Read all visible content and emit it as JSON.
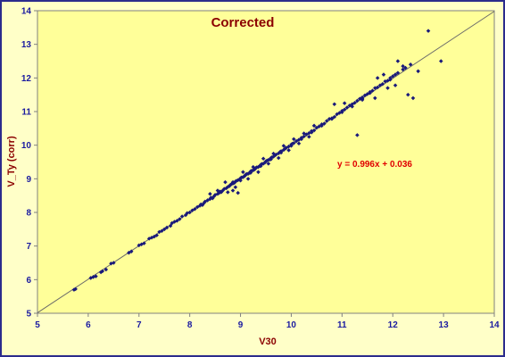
{
  "chart_data": {
    "type": "scatter",
    "title": "Corrected",
    "xlabel": "V30",
    "ylabel": "V_Ty (corr)",
    "xlim": [
      5,
      14
    ],
    "ylim": [
      5,
      14
    ],
    "xticks": [
      "5",
      "6",
      "7",
      "8",
      "9",
      "10",
      "11",
      "12",
      "13",
      "14"
    ],
    "yticks": [
      "5",
      "6",
      "7",
      "8",
      "9",
      "10",
      "11",
      "12",
      "13",
      "14"
    ],
    "grid": false,
    "legend": "none",
    "annotation": "y = 0.996x + 0.036",
    "trendline": {
      "slope": 0.996,
      "intercept": 0.036
    },
    "marker_color": "#1a1a7a",
    "line_color": "#6b6b6b",
    "series": [
      {
        "points": [
          [
            5.72,
            5.7
          ],
          [
            5.75,
            5.72
          ],
          [
            6.05,
            6.05
          ],
          [
            6.1,
            6.08
          ],
          [
            6.15,
            6.1
          ],
          [
            6.25,
            6.22
          ],
          [
            6.28,
            6.25
          ],
          [
            6.35,
            6.3
          ],
          [
            6.45,
            6.48
          ],
          [
            6.5,
            6.5
          ],
          [
            6.8,
            6.8
          ],
          [
            6.85,
            6.84
          ],
          [
            7.0,
            7.02
          ],
          [
            7.05,
            7.05
          ],
          [
            7.1,
            7.08
          ],
          [
            7.2,
            7.22
          ],
          [
            7.25,
            7.25
          ],
          [
            7.3,
            7.28
          ],
          [
            7.4,
            7.42
          ],
          [
            7.45,
            7.45
          ],
          [
            7.5,
            7.5
          ],
          [
            7.55,
            7.55
          ],
          [
            7.62,
            7.6
          ],
          [
            7.7,
            7.72
          ],
          [
            7.75,
            7.75
          ],
          [
            7.8,
            7.8
          ],
          [
            7.85,
            7.88
          ],
          [
            7.92,
            7.92
          ],
          [
            8.0,
            8.0
          ],
          [
            8.05,
            8.06
          ],
          [
            8.1,
            8.1
          ],
          [
            8.15,
            8.16
          ],
          [
            8.2,
            8.2
          ],
          [
            8.22,
            8.24
          ],
          [
            8.28,
            8.28
          ],
          [
            8.3,
            8.32
          ],
          [
            8.35,
            8.36
          ],
          [
            8.4,
            8.4
          ],
          [
            8.42,
            8.44
          ],
          [
            8.48,
            8.48
          ],
          [
            8.5,
            8.52
          ],
          [
            8.55,
            8.55
          ],
          [
            8.58,
            8.58
          ],
          [
            8.6,
            8.62
          ],
          [
            8.65,
            8.65
          ],
          [
            8.68,
            8.7
          ],
          [
            8.72,
            8.72
          ],
          [
            8.75,
            8.76
          ],
          [
            8.78,
            8.78
          ],
          [
            8.8,
            8.82
          ],
          [
            8.82,
            8.84
          ],
          [
            8.85,
            8.86
          ],
          [
            8.88,
            8.88
          ],
          [
            8.9,
            8.92
          ],
          [
            8.92,
            8.94
          ],
          [
            8.95,
            8.96
          ],
          [
            8.98,
            8.98
          ],
          [
            9.0,
            9.02
          ],
          [
            9.02,
            9.04
          ],
          [
            9.05,
            9.05
          ],
          [
            9.08,
            9.08
          ],
          [
            9.1,
            9.12
          ],
          [
            9.12,
            9.14
          ],
          [
            9.15,
            9.15
          ],
          [
            9.18,
            9.18
          ],
          [
            9.2,
            9.22
          ],
          [
            9.22,
            9.24
          ],
          [
            9.25,
            9.25
          ],
          [
            9.28,
            9.28
          ],
          [
            9.3,
            9.32
          ],
          [
            9.32,
            9.34
          ],
          [
            9.35,
            9.35
          ],
          [
            9.38,
            9.38
          ],
          [
            9.4,
            9.42
          ],
          [
            9.42,
            9.44
          ],
          [
            9.45,
            9.45
          ],
          [
            9.48,
            9.48
          ],
          [
            9.5,
            9.52
          ],
          [
            9.52,
            9.54
          ],
          [
            9.55,
            9.56
          ],
          [
            9.58,
            9.58
          ],
          [
            9.6,
            9.62
          ],
          [
            9.62,
            9.64
          ],
          [
            9.65,
            9.66
          ],
          [
            9.68,
            9.7
          ],
          [
            9.7,
            9.72
          ],
          [
            9.75,
            9.76
          ],
          [
            9.78,
            9.8
          ],
          [
            9.8,
            9.82
          ],
          [
            9.85,
            9.86
          ],
          [
            9.88,
            9.9
          ],
          [
            9.9,
            9.92
          ],
          [
            9.95,
            9.96
          ],
          [
            10.0,
            10.02
          ],
          [
            10.02,
            10.04
          ],
          [
            10.05,
            10.06
          ],
          [
            10.1,
            10.12
          ],
          [
            10.15,
            10.16
          ],
          [
            10.2,
            10.22
          ],
          [
            10.25,
            10.26
          ],
          [
            10.3,
            10.32
          ],
          [
            10.35,
            10.36
          ],
          [
            10.4,
            10.42
          ],
          [
            10.45,
            10.44
          ],
          [
            10.5,
            10.52
          ],
          [
            10.55,
            10.56
          ],
          [
            10.6,
            10.62
          ],
          [
            10.65,
            10.64
          ],
          [
            10.7,
            10.72
          ],
          [
            10.75,
            10.78
          ],
          [
            10.8,
            10.8
          ],
          [
            10.85,
            10.84
          ],
          [
            10.9,
            10.92
          ],
          [
            10.95,
            10.96
          ],
          [
            11.0,
            11.02
          ],
          [
            11.05,
            11.06
          ],
          [
            11.1,
            11.12
          ],
          [
            11.15,
            11.18
          ],
          [
            11.2,
            11.22
          ],
          [
            11.25,
            11.26
          ],
          [
            11.3,
            11.32
          ],
          [
            11.35,
            11.38
          ],
          [
            11.4,
            11.42
          ],
          [
            11.45,
            11.48
          ],
          [
            11.5,
            11.52
          ],
          [
            11.55,
            11.58
          ],
          [
            11.6,
            11.62
          ],
          [
            11.65,
            11.7
          ],
          [
            11.7,
            11.72
          ],
          [
            11.75,
            11.78
          ],
          [
            11.8,
            11.82
          ],
          [
            11.85,
            11.9
          ],
          [
            11.9,
            11.92
          ],
          [
            11.95,
            12.0
          ],
          [
            12.0,
            12.05
          ],
          [
            12.05,
            12.1
          ],
          [
            12.1,
            12.15
          ],
          [
            12.2,
            12.25
          ],
          [
            12.25,
            12.3
          ],
          [
            12.35,
            12.4
          ],
          [
            8.4,
            8.55
          ],
          [
            8.55,
            8.65
          ],
          [
            8.7,
            8.9
          ],
          [
            8.75,
            8.6
          ],
          [
            8.9,
            8.75
          ],
          [
            9.05,
            9.2
          ],
          [
            9.15,
            9.0
          ],
          [
            9.25,
            9.35
          ],
          [
            9.35,
            9.2
          ],
          [
            9.45,
            9.6
          ],
          [
            9.55,
            9.45
          ],
          [
            9.65,
            9.75
          ],
          [
            9.75,
            9.62
          ],
          [
            9.85,
            9.98
          ],
          [
            9.95,
            9.85
          ],
          [
            10.05,
            10.18
          ],
          [
            10.15,
            10.05
          ],
          [
            10.25,
            10.35
          ],
          [
            10.35,
            10.25
          ],
          [
            10.45,
            10.58
          ],
          [
            7.35,
            7.32
          ],
          [
            7.65,
            7.68
          ],
          [
            7.95,
            7.98
          ],
          [
            8.25,
            8.22
          ],
          [
            8.45,
            8.42
          ],
          [
            8.62,
            8.6
          ],
          [
            8.85,
            8.9
          ],
          [
            9.0,
            8.95
          ],
          [
            9.2,
            9.18
          ],
          [
            9.4,
            9.38
          ],
          [
            9.6,
            9.58
          ],
          [
            9.8,
            9.78
          ],
          [
            10.0,
            9.98
          ],
          [
            10.2,
            10.18
          ],
          [
            10.4,
            10.38
          ],
          [
            10.6,
            10.58
          ],
          [
            10.8,
            10.78
          ],
          [
            11.0,
            10.98
          ],
          [
            11.2,
            11.15
          ],
          [
            11.4,
            11.38
          ],
          [
            8.85,
            8.65
          ],
          [
            8.95,
            8.58
          ],
          [
            10.85,
            11.22
          ],
          [
            11.05,
            11.25
          ],
          [
            11.3,
            10.3
          ],
          [
            11.65,
            11.4
          ],
          [
            11.9,
            11.7
          ],
          [
            11.95,
            11.95
          ],
          [
            12.05,
            11.78
          ],
          [
            12.1,
            12.5
          ],
          [
            12.2,
            12.35
          ],
          [
            12.3,
            11.5
          ],
          [
            12.4,
            11.4
          ],
          [
            12.5,
            12.2
          ],
          [
            12.7,
            13.4
          ],
          [
            12.95,
            12.5
          ],
          [
            11.82,
            12.1
          ],
          [
            11.7,
            12.0
          ],
          [
            11.4,
            11.35
          ],
          [
            11.55,
            11.55
          ]
        ]
      }
    ]
  }
}
